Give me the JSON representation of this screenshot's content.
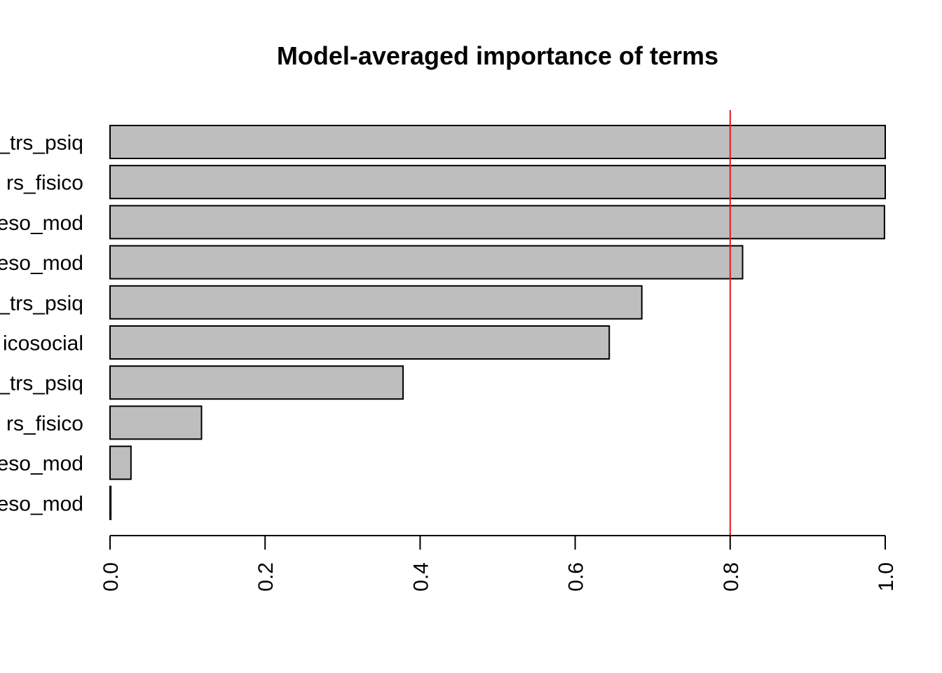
{
  "chart_data": {
    "type": "bar",
    "orientation": "horizontal",
    "title": "Model-averaged importance of terms",
    "xlabel": "",
    "ylabel": "",
    "categories": [
      "_trs_psiq",
      "rs_fisico",
      "eso_mod",
      "eso_mod",
      "_trs_psiq",
      "icosocial",
      "_trs_psiq",
      "rs_fisico",
      "eso_mod",
      "eso_mod"
    ],
    "values": [
      1.0,
      1.0,
      0.999,
      0.816,
      0.686,
      0.644,
      0.378,
      0.118,
      0.027,
      0.001
    ],
    "xlim": [
      0,
      1
    ],
    "xticks": [
      "0.0",
      "0.2",
      "0.4",
      "0.6",
      "0.8",
      "1.0"
    ],
    "reference_line": {
      "value": 0.8,
      "color": "#e31a1c"
    },
    "bar_color": "#bebebe",
    "grid": false,
    "legend": "none"
  }
}
